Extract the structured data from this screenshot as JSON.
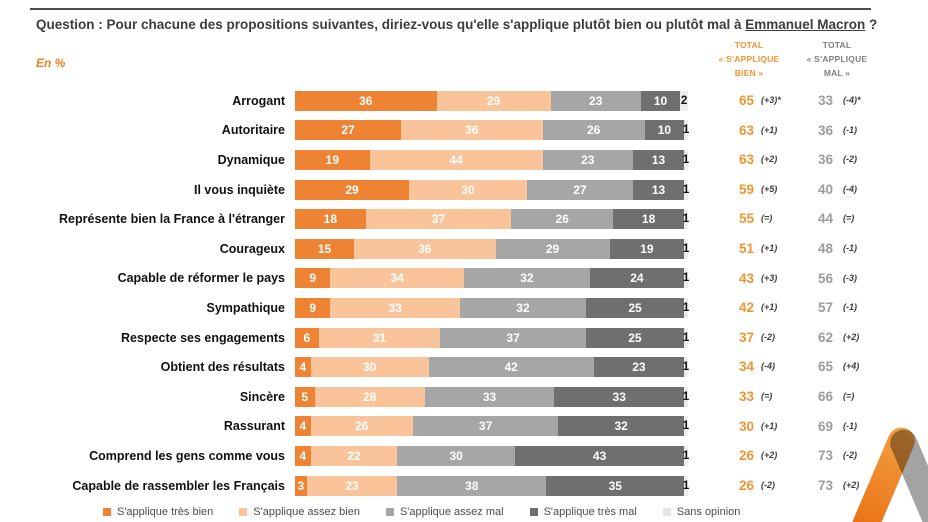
{
  "page": {
    "question_prefix": "Question : Pour chacune des propositions suivantes, diriez-vous qu'elle s'applique plutôt bien ou plutôt mal à ",
    "question_subject": "Emmanuel Macron",
    "question_suffix": " ?",
    "unit_label": "En %"
  },
  "totals_headers": {
    "bien": {
      "line1": "TOTAL",
      "line2": "« S'APPLIQUE",
      "line3": "BIEN »"
    },
    "mal": {
      "line1": "TOTAL",
      "line2": "« S'APPLIQUE",
      "line3": "MAL »"
    }
  },
  "colors": {
    "very_good": "#EE8433",
    "good": "#F9C499",
    "bad": "#A6A6A6",
    "very_bad": "#6F6F6F",
    "no_opinion": "#ECECEC",
    "total_bien_text": "#F0952F",
    "total_mal_text": "#9c9c9c"
  },
  "chart_data": {
    "type": "bar",
    "orientation": "horizontal-stacked",
    "unit": "%",
    "xlim": [
      0,
      100
    ],
    "title": "Pour chacune des propositions suivantes, diriez-vous qu'elle s'applique plutôt bien ou plutôt mal à Emmanuel Macron ?",
    "categories": [
      "Arrogant",
      "Autoritaire",
      "Dynamique",
      "Il vous inquiète",
      "Représente bien la France à l'étranger",
      "Courageux",
      "Capable de réformer le pays",
      "Sympathique",
      "Respecte ses engagements",
      "Obtient des résultats",
      "Sincère",
      "Rassurant",
      "Comprend les gens comme vous",
      "Capable de rassembler les Français"
    ],
    "series": [
      {
        "name": "S'applique très bien",
        "color": "#EE8433",
        "values": [
          36,
          27,
          19,
          29,
          18,
          15,
          9,
          9,
          6,
          4,
          5,
          4,
          4,
          3
        ]
      },
      {
        "name": "S'applique assez bien",
        "color": "#F9C499",
        "values": [
          29,
          36,
          44,
          30,
          37,
          36,
          34,
          33,
          31,
          30,
          28,
          26,
          22,
          23
        ]
      },
      {
        "name": "S'applique assez mal",
        "color": "#A6A6A6",
        "values": [
          23,
          26,
          23,
          27,
          26,
          29,
          32,
          32,
          37,
          42,
          33,
          37,
          30,
          38
        ]
      },
      {
        "name": "S'applique très mal",
        "color": "#6F6F6F",
        "values": [
          10,
          10,
          13,
          13,
          18,
          19,
          24,
          25,
          25,
          23,
          33,
          32,
          43,
          35
        ]
      },
      {
        "name": "Sans opinion",
        "color": "#ECECEC",
        "values": [
          2,
          1,
          1,
          1,
          1,
          1,
          1,
          1,
          1,
          1,
          1,
          1,
          1,
          1
        ]
      }
    ],
    "rows": [
      {
        "label": "Arrogant",
        "values": [
          36,
          29,
          23,
          10,
          2
        ],
        "total_bien": "65",
        "delta_bien": "(+3)*",
        "total_mal": "33",
        "delta_mal": "(-4)*"
      },
      {
        "label": "Autoritaire",
        "values": [
          27,
          36,
          26,
          10,
          1
        ],
        "total_bien": "63",
        "delta_bien": "(+1)",
        "total_mal": "36",
        "delta_mal": "(-1)"
      },
      {
        "label": "Dynamique",
        "values": [
          19,
          44,
          23,
          13,
          1
        ],
        "total_bien": "63",
        "delta_bien": "(+2)",
        "total_mal": "36",
        "delta_mal": "(-2)"
      },
      {
        "label": "Il vous inquiète",
        "values": [
          29,
          30,
          27,
          13,
          1
        ],
        "total_bien": "59",
        "delta_bien": "(+5)",
        "total_mal": "40",
        "delta_mal": "(-4)"
      },
      {
        "label": "Représente bien la France à l'étranger",
        "values": [
          18,
          37,
          26,
          18,
          1
        ],
        "total_bien": "55",
        "delta_bien": "(=)",
        "total_mal": "44",
        "delta_mal": "(=)"
      },
      {
        "label": "Courageux",
        "values": [
          15,
          36,
          29,
          19,
          1
        ],
        "total_bien": "51",
        "delta_bien": "(+1)",
        "total_mal": "48",
        "delta_mal": "(-1)"
      },
      {
        "label": "Capable de réformer le pays",
        "values": [
          9,
          34,
          32,
          24,
          1
        ],
        "total_bien": "43",
        "delta_bien": "(+3)",
        "total_mal": "56",
        "delta_mal": "(-3)"
      },
      {
        "label": "Sympathique",
        "values": [
          9,
          33,
          32,
          25,
          1
        ],
        "total_bien": "42",
        "delta_bien": "(+1)",
        "total_mal": "57",
        "delta_mal": "(-1)"
      },
      {
        "label": "Respecte ses engagements",
        "values": [
          6,
          31,
          37,
          25,
          1
        ],
        "total_bien": "37",
        "delta_bien": "(-2)",
        "total_mal": "62",
        "delta_mal": "(+2)"
      },
      {
        "label": "Obtient des résultats",
        "values": [
          4,
          30,
          42,
          23,
          1
        ],
        "total_bien": "34",
        "delta_bien": "(-4)",
        "total_mal": "65",
        "delta_mal": "(+4)"
      },
      {
        "label": "Sincère",
        "values": [
          5,
          28,
          33,
          33,
          1
        ],
        "total_bien": "33",
        "delta_bien": "(=)",
        "total_mal": "66",
        "delta_mal": "(=)"
      },
      {
        "label": "Rassurant",
        "values": [
          4,
          26,
          37,
          32,
          1
        ],
        "total_bien": "30",
        "delta_bien": "(+1)",
        "total_mal": "69",
        "delta_mal": "(-1)"
      },
      {
        "label": "Comprend les gens comme vous",
        "values": [
          4,
          22,
          30,
          43,
          1
        ],
        "total_bien": "26",
        "delta_bien": "(+2)",
        "total_mal": "73",
        "delta_mal": "(-2)"
      },
      {
        "label": "Capable de rassembler les Français",
        "values": [
          3,
          23,
          38,
          35,
          1
        ],
        "total_bien": "26",
        "delta_bien": "(-2)",
        "total_mal": "73",
        "delta_mal": "(+2)"
      }
    ]
  },
  "legend": {
    "items": [
      {
        "label": "S'applique très bien",
        "color": "#EE8433"
      },
      {
        "label": "S'applique assez bien",
        "color": "#F9C499"
      },
      {
        "label": "S'applique assez mal",
        "color": "#A6A6A6"
      },
      {
        "label": "S'applique très mal",
        "color": "#6F6F6F"
      },
      {
        "label": "Sans opinion",
        "color": "#E6E6E6"
      }
    ]
  }
}
